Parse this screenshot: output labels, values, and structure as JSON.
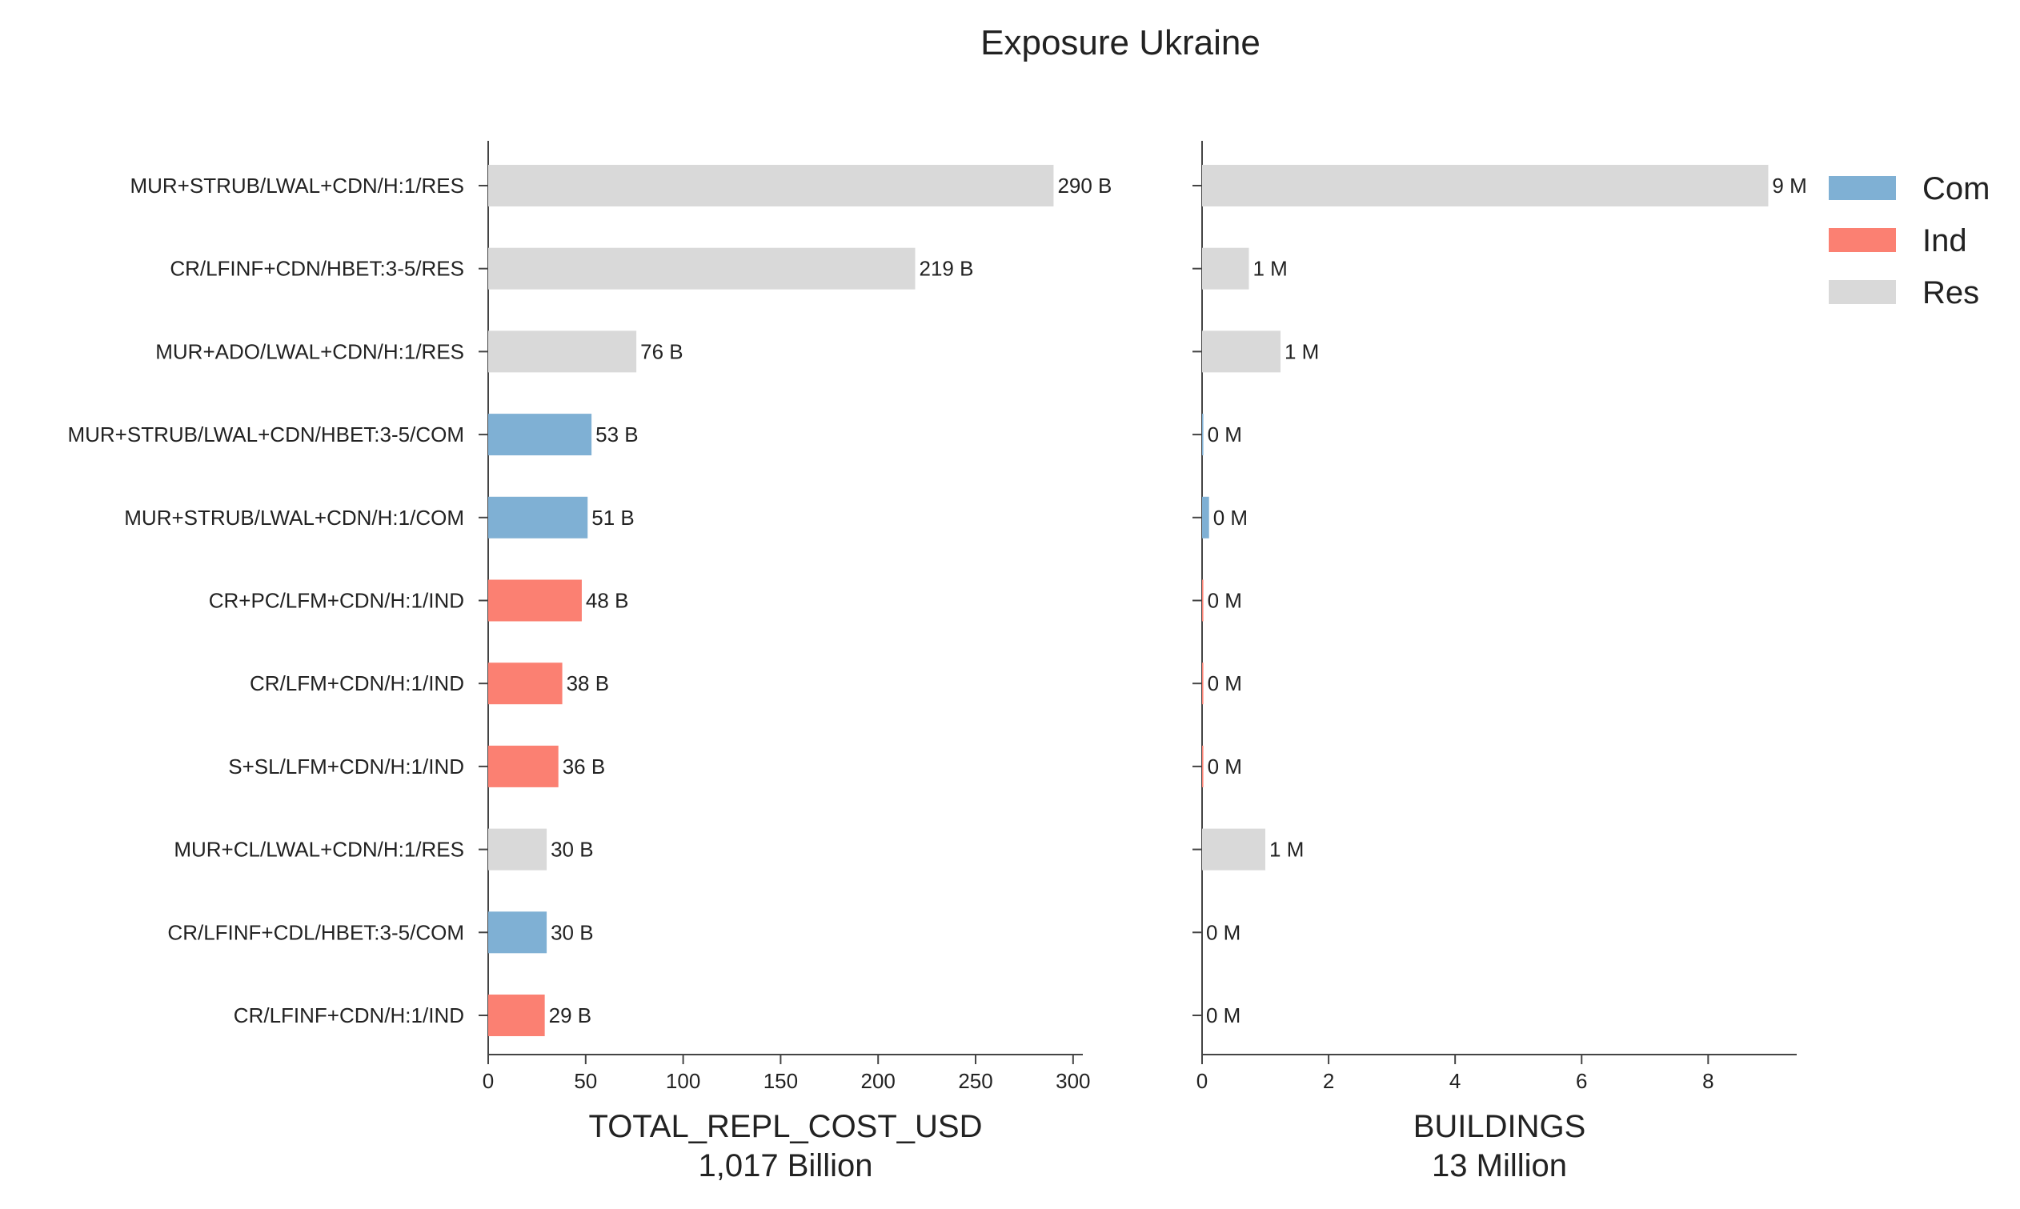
{
  "chart_data": {
    "title": "Exposure Ukraine",
    "type": "bar",
    "orientation": "horizontal",
    "categories": [
      "MUR+STRUB/LWAL+CDN/H:1/RES",
      "CR/LFINF+CDN/HBET:3-5/RES",
      "MUR+ADO/LWAL+CDN/H:1/RES",
      "MUR+STRUB/LWAL+CDN/HBET:3-5/COM",
      "MUR+STRUB/LWAL+CDN/H:1/COM",
      "CR+PC/LFM+CDN/H:1/IND",
      "CR/LFM+CDN/H:1/IND",
      "S+SL/LFM+CDN/H:1/IND",
      "MUR+CL/LWAL+CDN/H:1/RES",
      "CR/LFINF+CDL/HBET:3-5/COM",
      "CR/LFINF+CDN/H:1/IND"
    ],
    "occupancy": [
      "Res",
      "Res",
      "Res",
      "Com",
      "Com",
      "Ind",
      "Ind",
      "Ind",
      "Res",
      "Com",
      "Ind"
    ],
    "legend": {
      "placement": "top-right",
      "entries": [
        {
          "label": "Com",
          "color": "#7fb0d4"
        },
        {
          "label": "Ind",
          "color": "#fb8072"
        },
        {
          "label": "Res",
          "color": "#d9d9d9"
        }
      ]
    },
    "panels": [
      {
        "xlabel": "TOTAL_REPL_COST_USD",
        "subtitle": "1,017 Billion",
        "xlim": [
          0,
          305
        ],
        "ticks": [
          0,
          50,
          100,
          150,
          200,
          250,
          300
        ],
        "values": [
          290,
          219,
          76,
          53,
          51,
          48,
          38,
          36,
          30,
          30,
          29
        ],
        "value_labels": [
          "290 B",
          "219 B",
          "76 B",
          "53 B",
          "51 B",
          "48 B",
          "38 B",
          "36 B",
          "30 B",
          "30 B",
          "29 B"
        ]
      },
      {
        "xlabel": "BUILDINGS",
        "subtitle": "13 Million",
        "xlim": [
          0,
          9.4
        ],
        "ticks": [
          0,
          2,
          4,
          6,
          8
        ],
        "values": [
          8.95,
          0.74,
          1.24,
          0.02,
          0.11,
          0.02,
          0.02,
          0.02,
          1.0,
          0.0,
          0.0
        ],
        "value_labels": [
          "9 M",
          "1 M",
          "1 M",
          "0 M",
          "0 M",
          "0 M",
          "0 M",
          "0 M",
          "1 M",
          "0 M",
          "0 M"
        ]
      }
    ]
  }
}
